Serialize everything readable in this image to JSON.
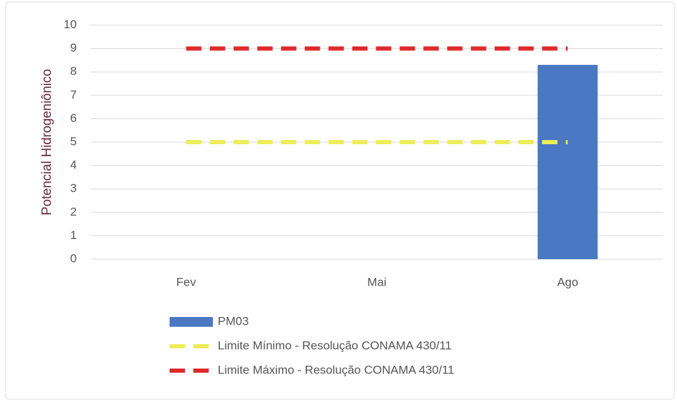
{
  "chart_data": {
    "type": "bar",
    "y_label": "Potencial Hidrogeniônico",
    "categories": [
      "Fev",
      "Mai",
      "Ago"
    ],
    "series": [
      {
        "name": "PM03",
        "type": "bar",
        "color": "#4a78c2",
        "values": [
          null,
          null,
          8.3
        ]
      },
      {
        "name": "Limite Mínimo - Resolução CONAMA 430/11",
        "type": "line",
        "color": "#eded5a",
        "values": [
          5,
          5,
          5
        ]
      },
      {
        "name": "Limite Máximo - Resolução CONAMA 430/11",
        "type": "line",
        "color": "#e02a2a",
        "values": [
          9,
          9,
          9
        ]
      }
    ],
    "ylim": [
      0,
      10
    ],
    "yticks": [
      0,
      1,
      2,
      3,
      4,
      5,
      6,
      7,
      8,
      9,
      10
    ],
    "grid": true,
    "legend": "bottom"
  }
}
